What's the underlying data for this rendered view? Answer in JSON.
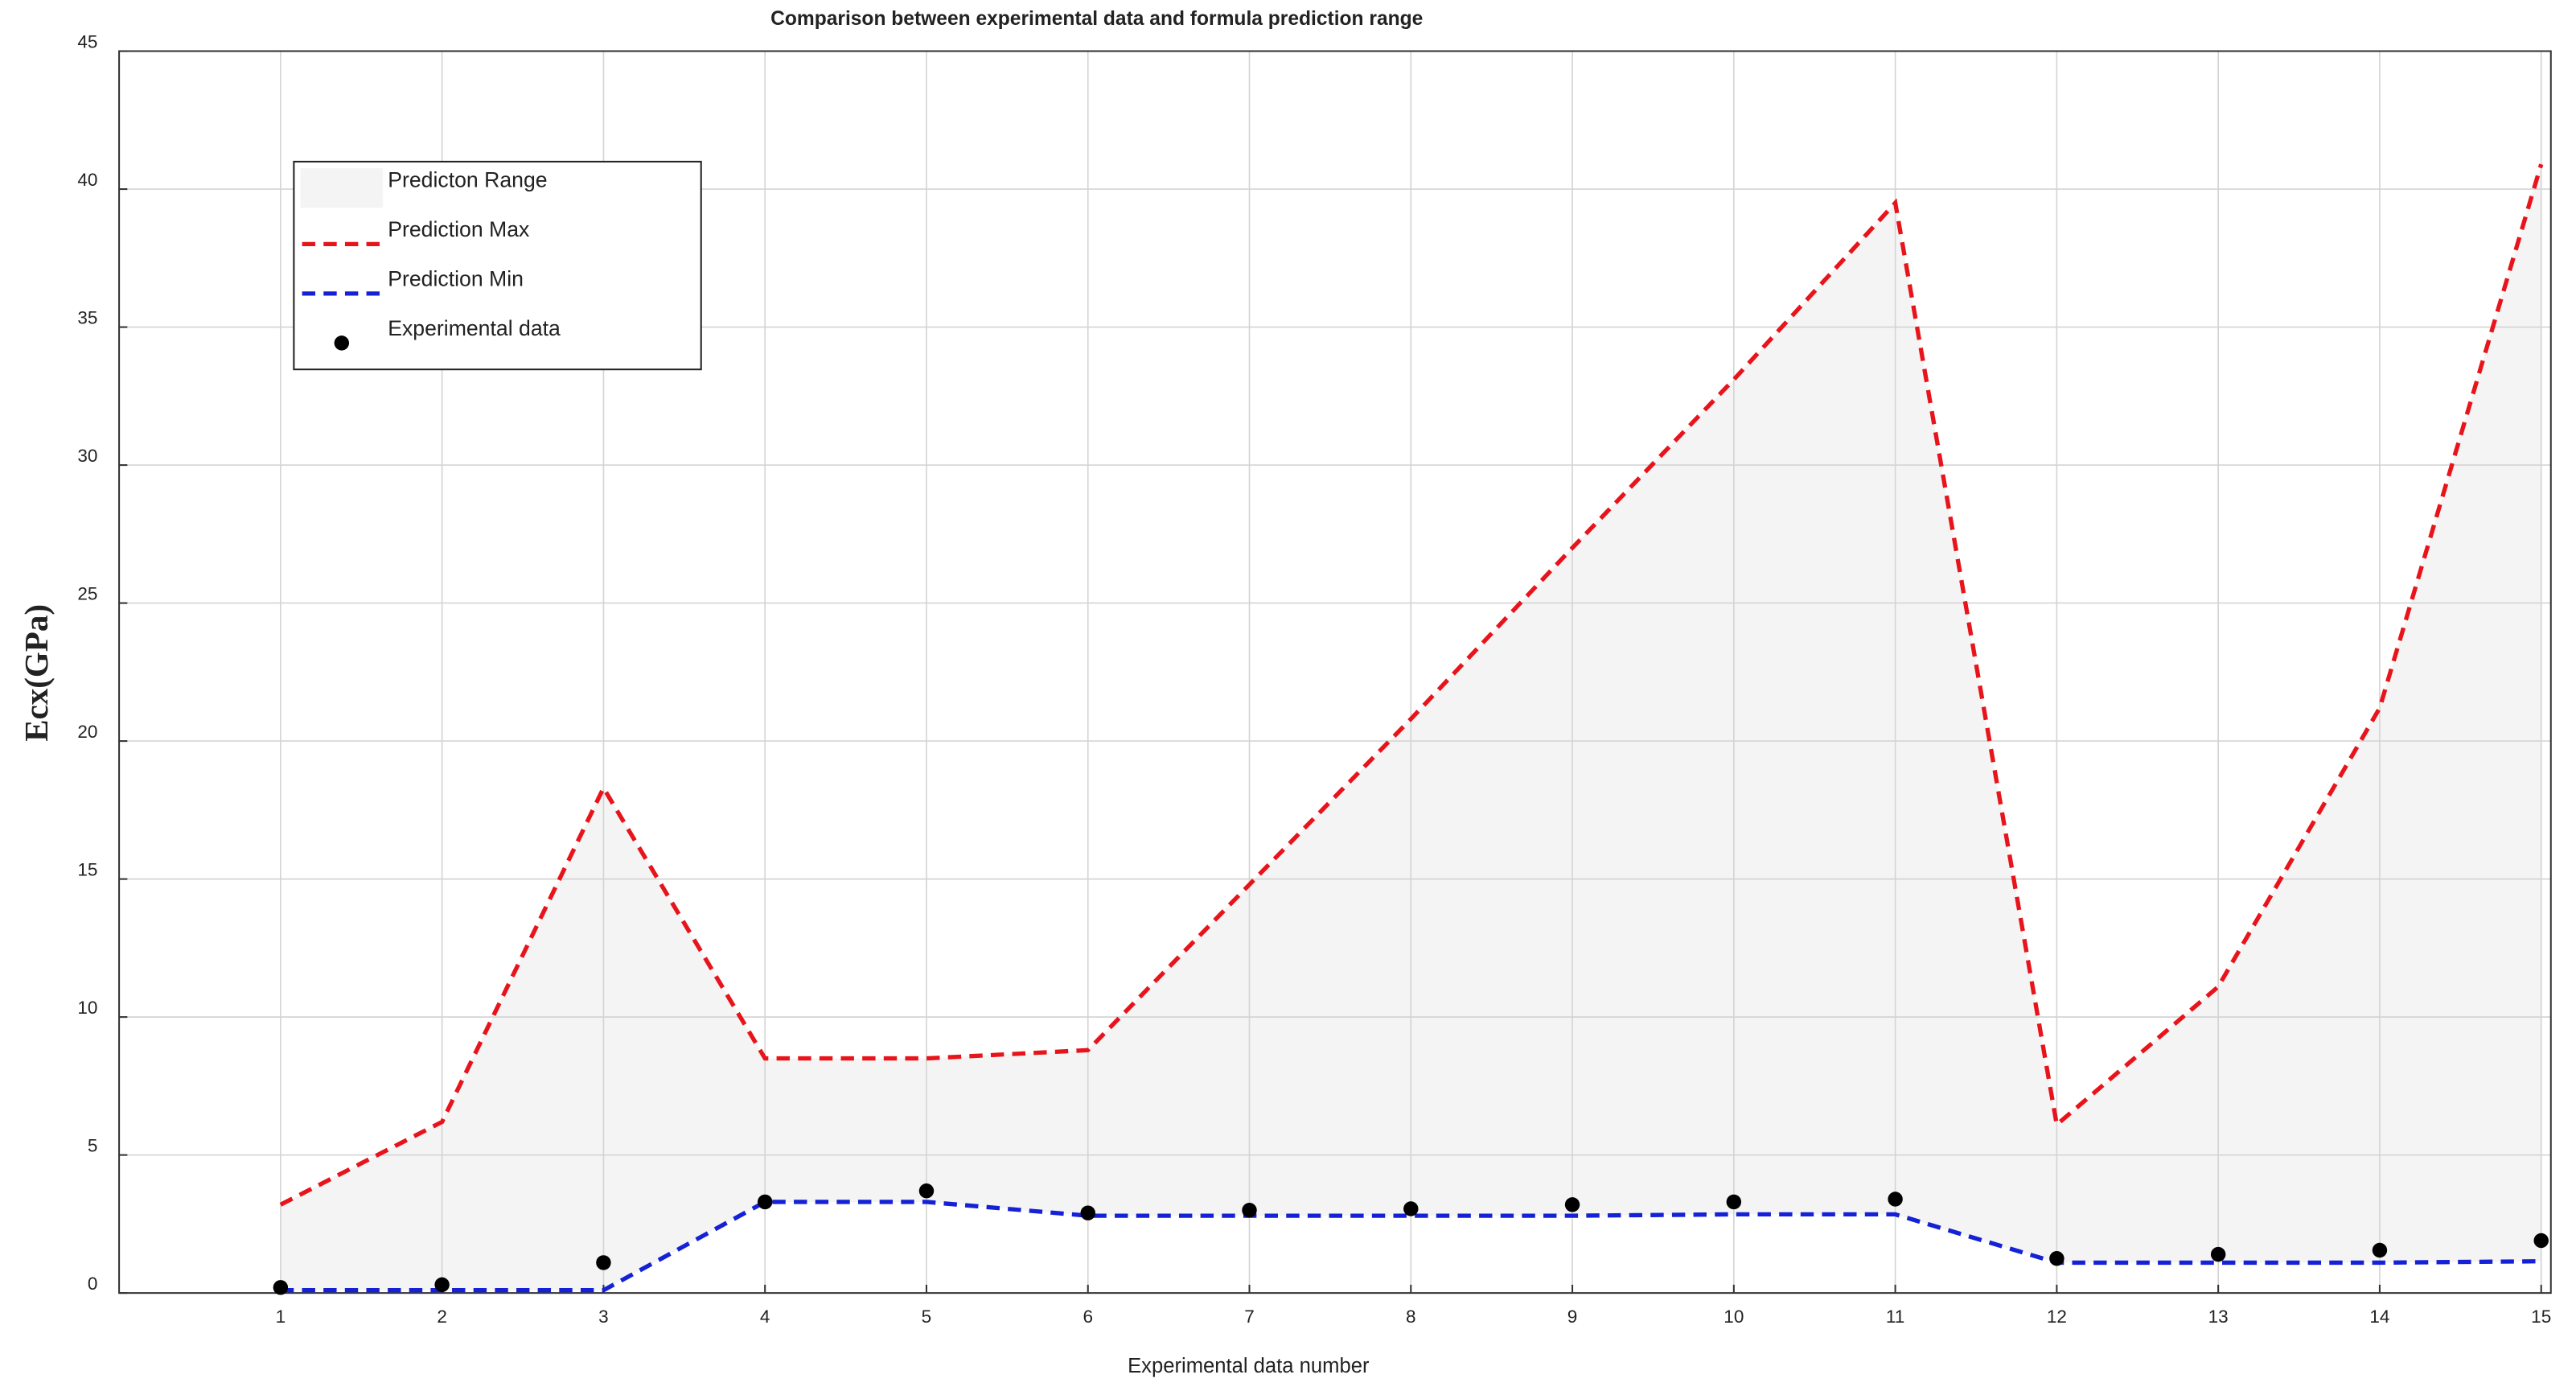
{
  "chart_data": {
    "type": "line",
    "title": "Comparison between experimental data and formula prediction range",
    "x_label": "Experimental data number",
    "y_label": "Ecx(GPa)",
    "x": [
      1,
      2,
      3,
      4,
      5,
      6,
      7,
      8,
      9,
      10,
      11,
      12,
      13,
      14,
      15
    ],
    "xlim": [
      0,
      15.06
    ],
    "xticks": [
      1,
      2,
      3,
      4,
      5,
      6,
      7,
      8,
      9,
      10,
      11,
      12,
      13,
      14,
      15
    ],
    "ylim": [
      0,
      45
    ],
    "yticks": [
      0,
      5,
      10,
      15,
      20,
      25,
      30,
      35,
      40,
      45
    ],
    "grid": true,
    "legend": "upper left",
    "range": {
      "name": "Predicton Range",
      "color": "#f4f4f4"
    },
    "series": [
      {
        "name": "Prediction Max",
        "color": "#e8141b",
        "style": "dashed",
        "values": [
          3.2,
          6.2,
          18.3,
          8.5,
          8.5,
          8.8,
          14.8,
          20.8,
          27.0,
          33.1,
          39.5,
          6.1,
          11.1,
          21.2,
          40.9
        ]
      },
      {
        "name": "Prediction Min",
        "color": "#1521d6",
        "style": "dashed",
        "values": [
          0.1,
          0.1,
          0.1,
          3.3,
          3.3,
          2.8,
          2.8,
          2.8,
          2.8,
          2.85,
          2.85,
          1.1,
          1.1,
          1.1,
          1.15
        ]
      },
      {
        "name": "Experimental data",
        "color": "#000000",
        "style": "markers",
        "values": [
          0.2,
          0.3,
          1.1,
          3.3,
          3.7,
          2.9,
          3.0,
          3.05,
          3.2,
          3.3,
          3.4,
          1.25,
          1.4,
          1.55,
          1.9
        ]
      }
    ]
  }
}
